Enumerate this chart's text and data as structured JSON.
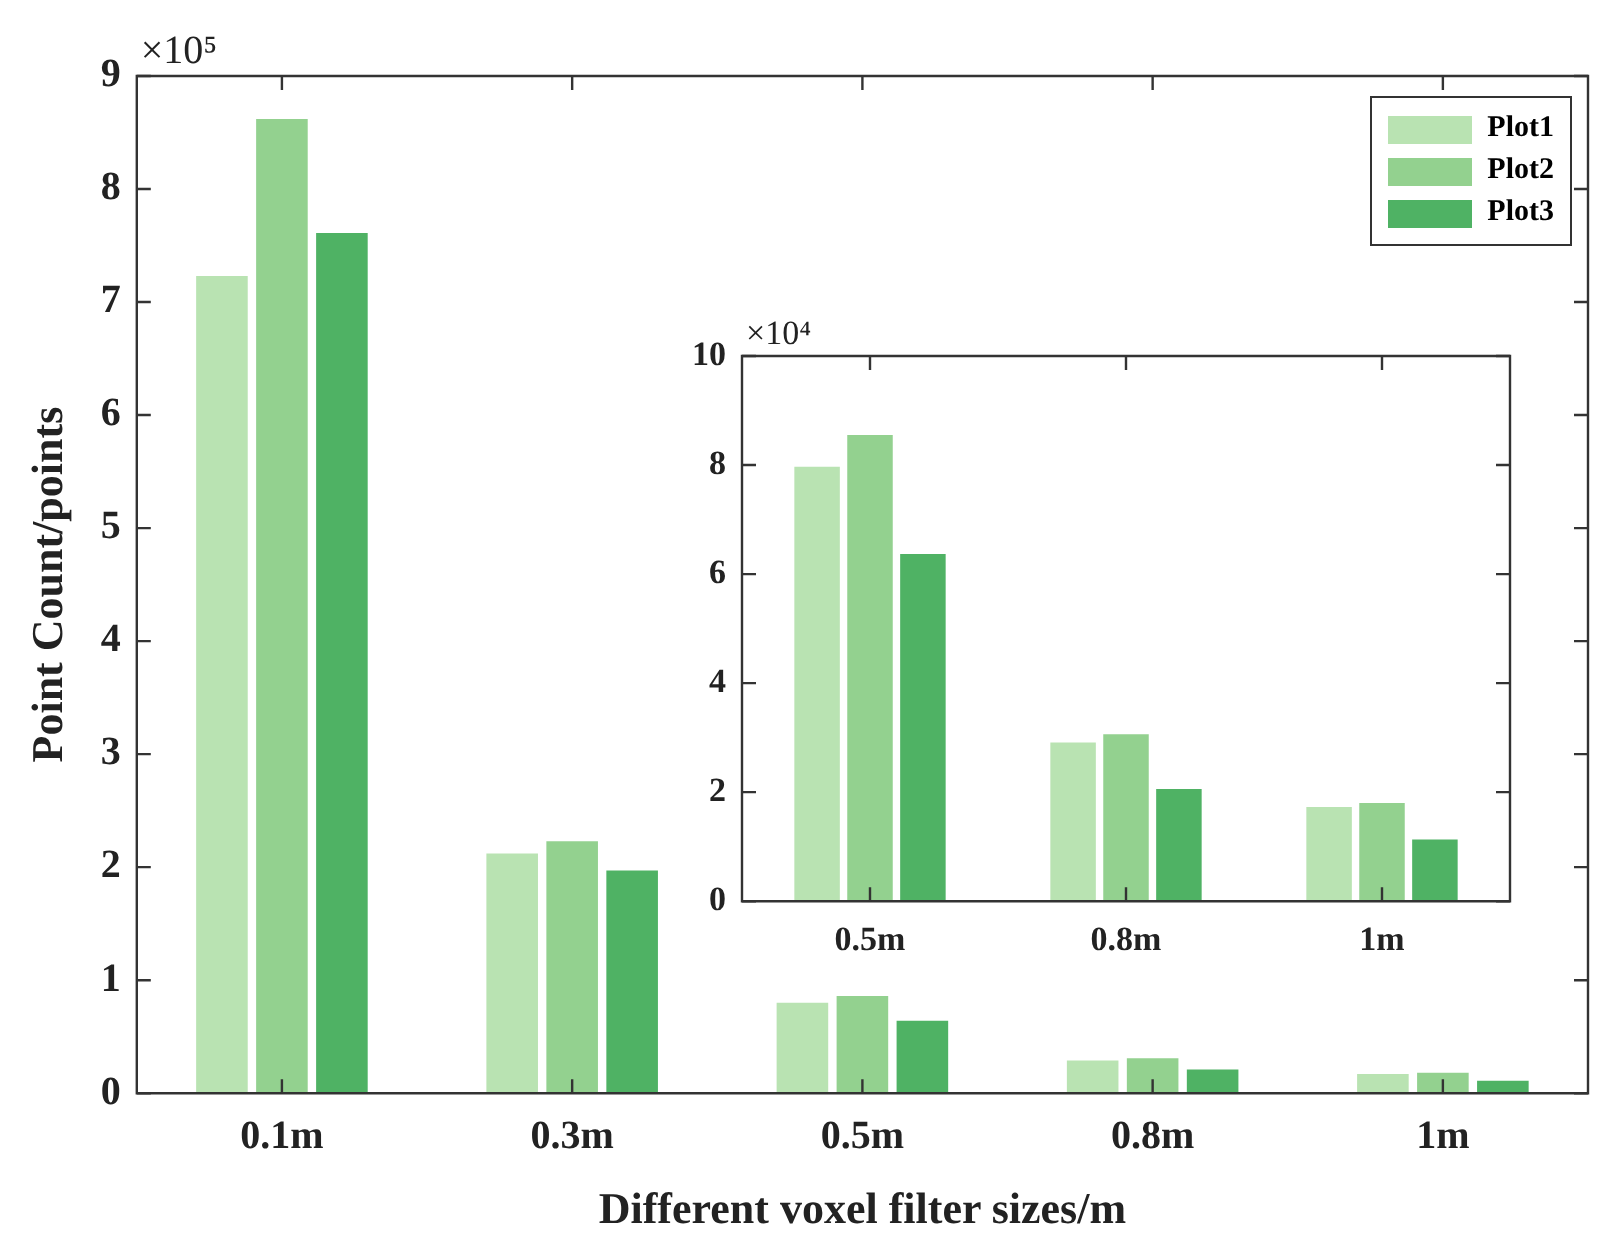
{
  "chart_data": [
    {
      "type": "bar",
      "xlabel": "Different voxel filter sizes/m",
      "ylabel": "Point Count/points",
      "categories": [
        "0.1m",
        "0.3m",
        "0.5m",
        "0.8m",
        "1m"
      ],
      "series": [
        {
          "name": "Plot1",
          "color": "#b9e3b2",
          "values": [
            7.23,
            2.12,
            0.8,
            0.29,
            0.17
          ]
        },
        {
          "name": "Plot2",
          "color": "#93d18f",
          "values": [
            8.62,
            2.23,
            0.86,
            0.31,
            0.18
          ]
        },
        {
          "name": "Plot3",
          "color": "#4fb264",
          "values": [
            7.61,
            1.97,
            0.64,
            0.21,
            0.11
          ]
        }
      ],
      "ylim": [
        0,
        9
      ],
      "yticks": [
        0,
        1,
        2,
        3,
        4,
        5,
        6,
        7,
        8,
        9
      ],
      "annotations": [
        "×10⁵"
      ],
      "grid": false,
      "legend": "top right"
    },
    {
      "type": "bar",
      "categories": [
        "0.5m",
        "0.8m",
        "1m"
      ],
      "series": [
        {
          "color": "#b9e3b2",
          "values": [
            7.97,
            2.91,
            1.73
          ]
        },
        {
          "color": "#93d18f",
          "values": [
            8.55,
            3.06,
            1.8
          ]
        },
        {
          "color": "#4fb264",
          "values": [
            6.37,
            2.06,
            1.13
          ]
        }
      ],
      "ylim": [
        0,
        10
      ],
      "yticks": [
        0,
        2,
        4,
        6,
        8,
        10
      ],
      "annotations": [
        "×10⁴"
      ],
      "grid": false,
      "legend": false
    }
  ]
}
